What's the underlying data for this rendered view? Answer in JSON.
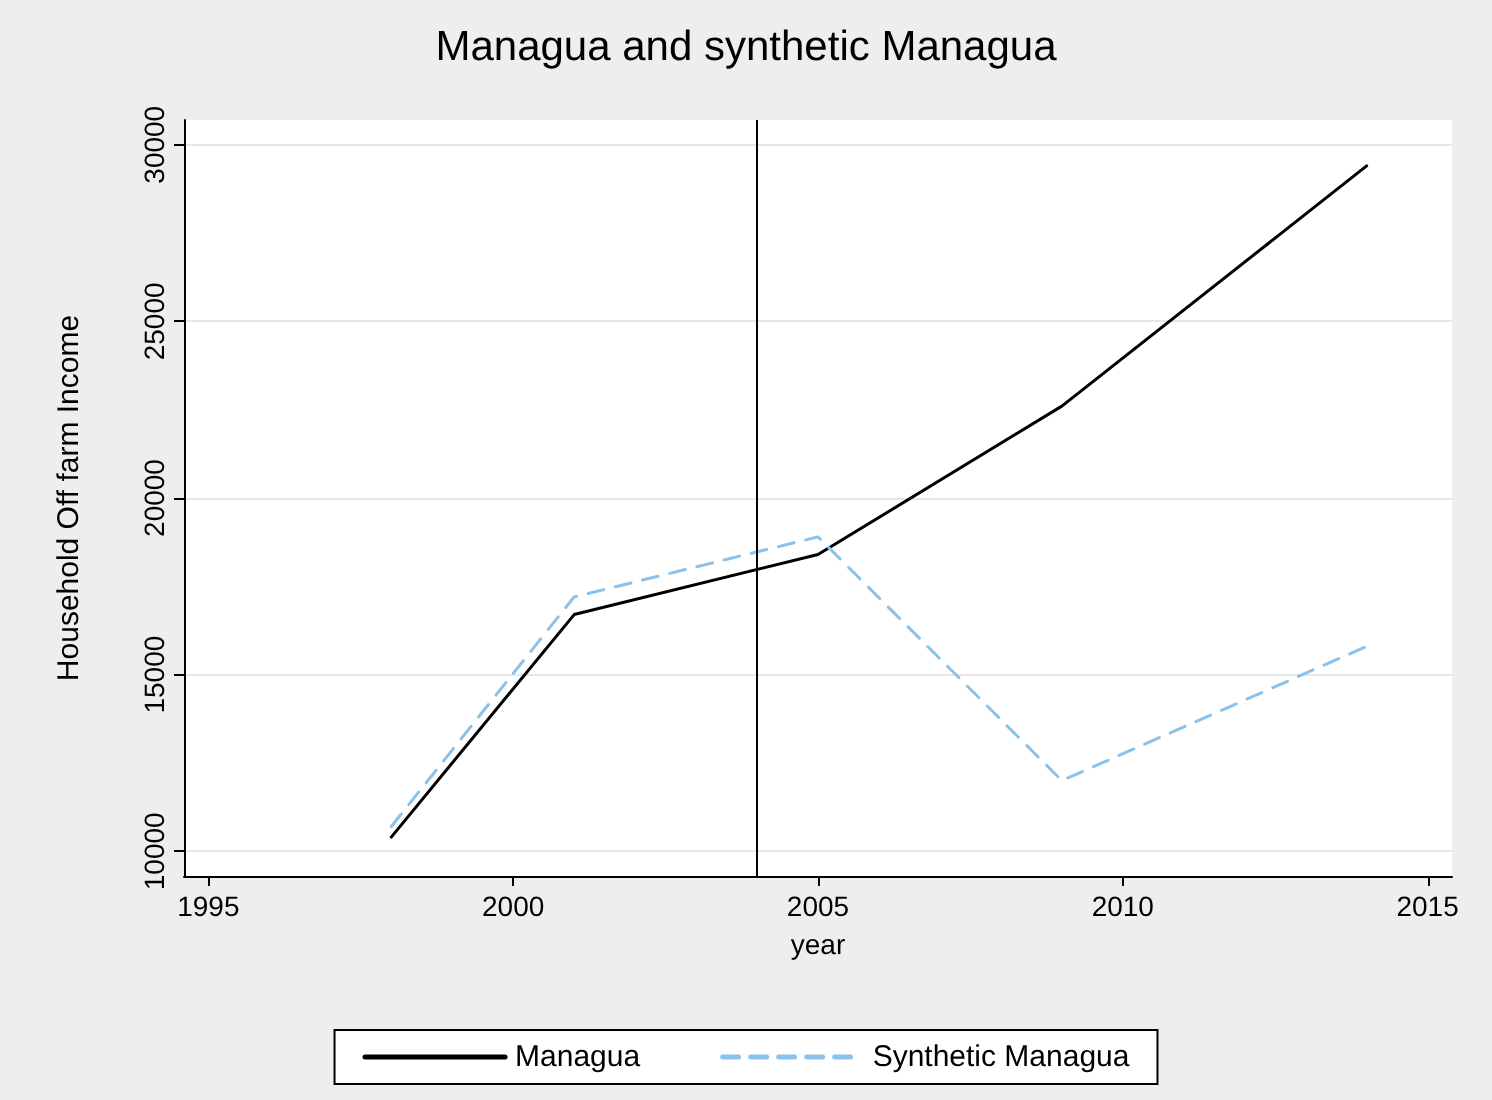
{
  "chart_data": {
    "type": "line",
    "title": "Managua and synthetic Managua",
    "xlabel": "year",
    "ylabel": "Household Off farm Income",
    "x": [
      1998,
      2001,
      2005,
      2009,
      2014
    ],
    "series": [
      {
        "name": "Managua",
        "color": "#000000",
        "values": [
          10400,
          16700,
          18400,
          22600,
          29400
        ],
        "line_style": "solid"
      },
      {
        "name": "Synthetic Managua",
        "color": "#89c2ea",
        "values": [
          10700,
          17200,
          18900,
          12000,
          15800
        ],
        "line_style": "dashed"
      }
    ],
    "xlim": [
      1994.6,
      2015.4
    ],
    "xticks": [
      1995,
      2000,
      2005,
      2010,
      2015
    ],
    "ylim": [
      9300,
      30700
    ],
    "yticks": [
      10000,
      15000,
      20000,
      25000,
      30000
    ],
    "ref_lines": [
      {
        "axis": "x",
        "value": 2004,
        "color": "#000000"
      }
    ],
    "grid": "y",
    "legend": "bottom",
    "marker": "none"
  }
}
